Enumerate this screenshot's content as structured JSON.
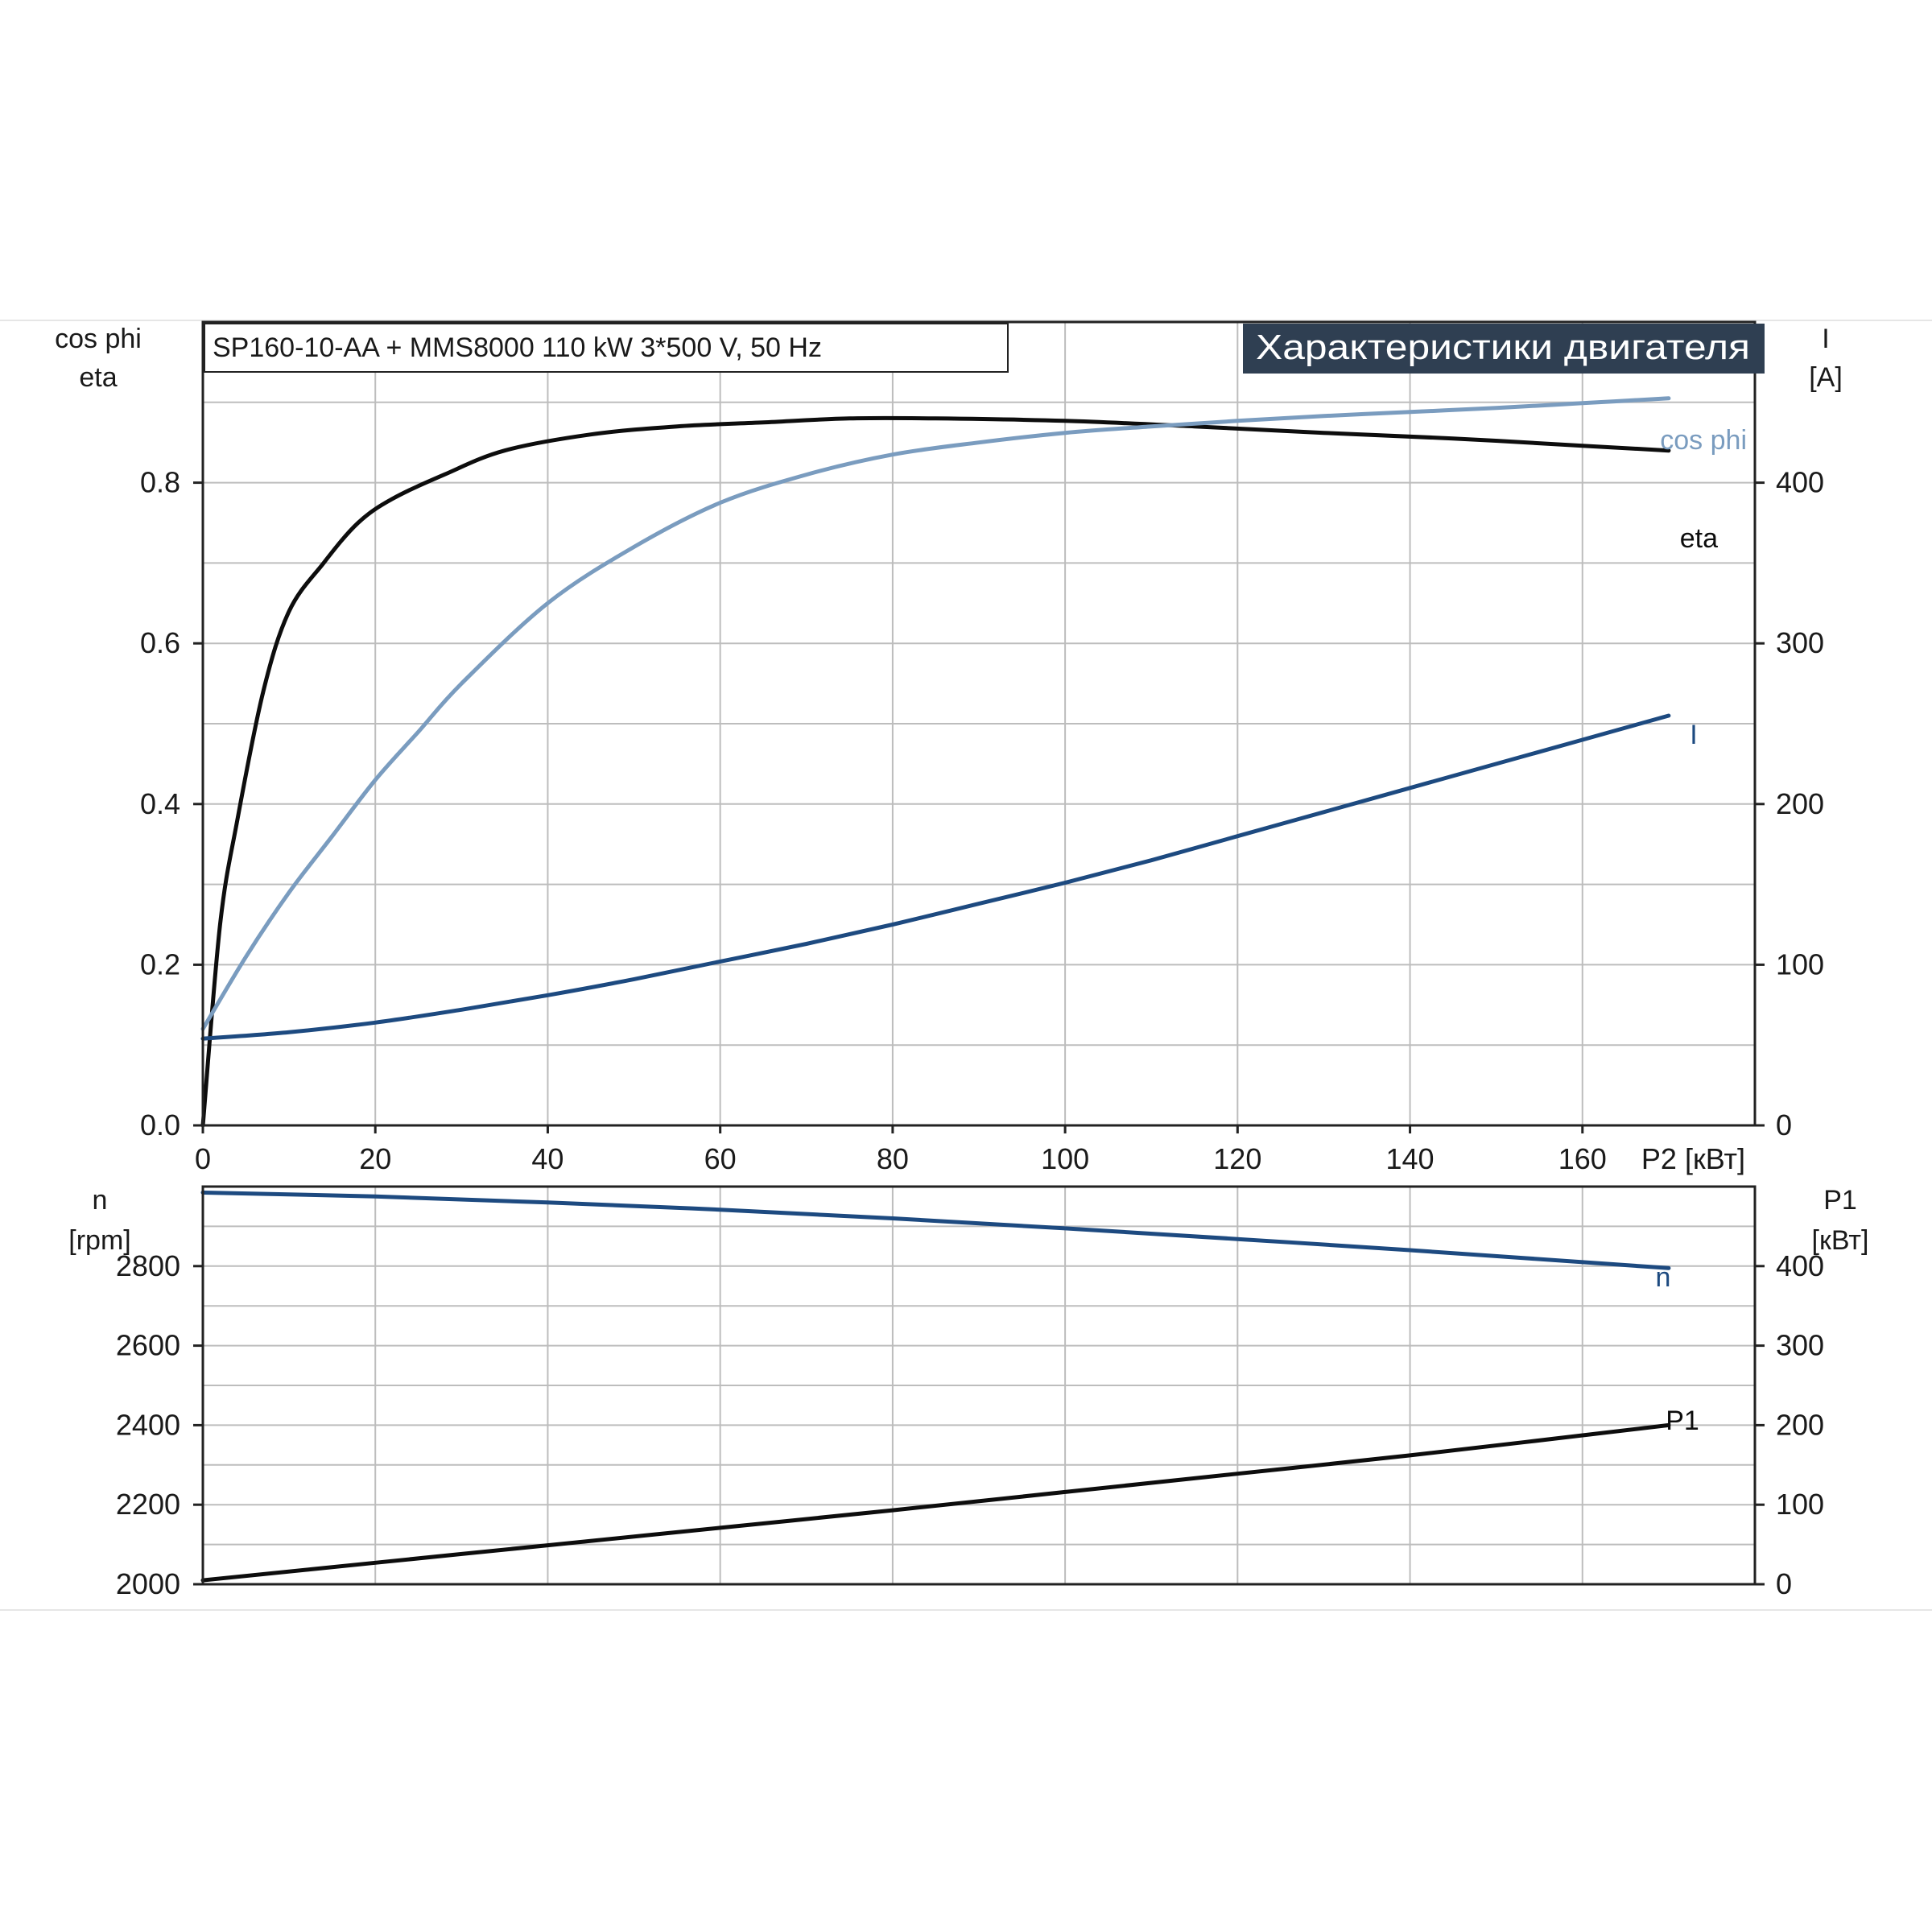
{
  "header": {
    "model": "SP160-10-AA + MMS8000   110 kW   3*500 V, 50 Hz",
    "section_title": "Характеристики двигателя"
  },
  "colors": {
    "eta": "#0d0d0d",
    "cos_phi": "#7a9cbf",
    "current": "#1d4a80",
    "speed": "#1d4a80",
    "p1": "#0d0d0d",
    "title_bg": "#2f3f52"
  },
  "chart_data": [
    {
      "type": "line",
      "x_axis": {
        "label": "P2 [кВт]",
        "range": [
          0,
          180
        ],
        "ticks": [
          "0",
          "20",
          "40",
          "60",
          "80",
          "100",
          "120",
          "140",
          "160"
        ]
      },
      "y_left": {
        "label": [
          "cos phi",
          "eta"
        ],
        "range": [
          0,
          1.0
        ],
        "ticks": [
          "0.0",
          "0.2",
          "0.4",
          "0.6",
          "0.8"
        ]
      },
      "y_right": {
        "label": [
          "I",
          "[A]"
        ],
        "range": [
          0,
          500
        ],
        "ticks": [
          "0",
          "100",
          "200",
          "300",
          "400"
        ]
      },
      "grid": true,
      "series": [
        {
          "name": "eta",
          "axis": "left",
          "color_key": "eta",
          "x": [
            0,
            2,
            4,
            7,
            10,
            14,
            18,
            22,
            28,
            35,
            45,
            55,
            65,
            75,
            85,
            100,
            115,
            130,
            145,
            160,
            170
          ],
          "y": [
            0,
            0.25,
            0.38,
            0.54,
            0.64,
            0.7,
            0.75,
            0.78,
            0.81,
            0.84,
            0.86,
            0.87,
            0.875,
            0.88,
            0.88,
            0.877,
            0.87,
            0.862,
            0.855,
            0.846,
            0.84
          ]
        },
        {
          "name": "cos phi",
          "axis": "left",
          "color_key": "cos_phi",
          "x": [
            0,
            5,
            10,
            15,
            20,
            25,
            30,
            40,
            50,
            60,
            70,
            80,
            90,
            100,
            110,
            120,
            130,
            140,
            150,
            160,
            170
          ],
          "y": [
            0.12,
            0.21,
            0.29,
            0.36,
            0.43,
            0.49,
            0.55,
            0.65,
            0.72,
            0.775,
            0.81,
            0.835,
            0.85,
            0.862,
            0.87,
            0.877,
            0.883,
            0.888,
            0.893,
            0.899,
            0.905
          ]
        },
        {
          "name": "I",
          "axis": "right",
          "color_key": "current",
          "x": [
            0,
            10,
            20,
            30,
            40,
            50,
            60,
            70,
            80,
            90,
            100,
            110,
            120,
            130,
            140,
            150,
            160,
            170
          ],
          "y": [
            54,
            58,
            64,
            72,
            81,
            91,
            102,
            113,
            125,
            138,
            151,
            165,
            180,
            195,
            210,
            225,
            240,
            255
          ]
        }
      ]
    },
    {
      "type": "line",
      "x_axis": {
        "label": "P2 [кВт]",
        "range": [
          0,
          180
        ]
      },
      "y_left": {
        "label": [
          "n",
          "[rpm]"
        ],
        "range": [
          2000,
          3000
        ],
        "ticks": [
          "2000",
          "2200",
          "2400",
          "2600",
          "2800"
        ]
      },
      "y_right": {
        "label": [
          "P1",
          "[кВт]"
        ],
        "range": [
          0,
          500
        ],
        "ticks": [
          "0",
          "100",
          "200",
          "300",
          "400"
        ]
      },
      "grid": true,
      "series": [
        {
          "name": "n",
          "axis": "left",
          "color_key": "speed",
          "x": [
            0,
            20,
            40,
            60,
            80,
            100,
            120,
            140,
            170
          ],
          "y": [
            2985,
            2975,
            2960,
            2942,
            2920,
            2895,
            2868,
            2840,
            2795
          ]
        },
        {
          "name": "P1",
          "axis": "right",
          "color_key": "p1",
          "x": [
            0,
            20,
            40,
            60,
            80,
            100,
            120,
            140,
            170
          ],
          "y": [
            5,
            27,
            49,
            71,
            93,
            116,
            139,
            162,
            200
          ]
        }
      ]
    }
  ]
}
